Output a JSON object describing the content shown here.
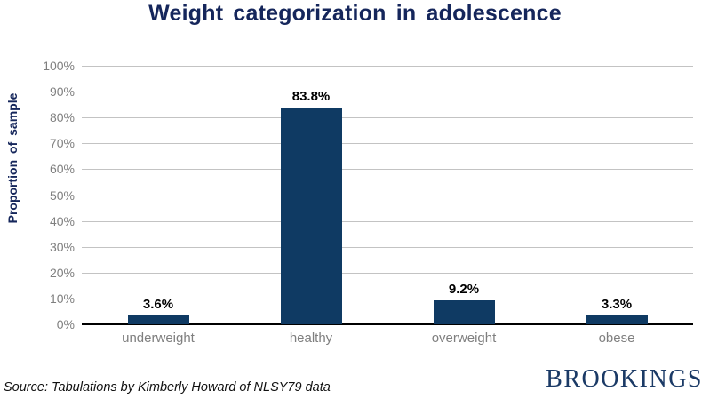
{
  "chart": {
    "title": "Weight categorization in adolescence",
    "ylabel": "Proportion  of  sample"
  },
  "chart_data": {
    "type": "bar",
    "title": "Weight categorization in adolescence",
    "categories": [
      "underweight",
      "healthy",
      "overweight",
      "obese"
    ],
    "values": [
      3.6,
      83.8,
      9.2,
      3.3
    ],
    "value_labels": [
      "3.6%",
      "83.8%",
      "9.2%",
      "3.3%"
    ],
    "xlabel": "",
    "ylabel": "Proportion of sample",
    "ylim": [
      0,
      100
    ],
    "ytick_step": 10,
    "ytick_labels": [
      "0%",
      "10%",
      "20%",
      "30%",
      "40%",
      "50%",
      "60%",
      "70%",
      "80%",
      "90%",
      "100%"
    ],
    "grid": true,
    "legend": "none",
    "bar_color": "#0f3a63"
  },
  "footer": {
    "source": "Source: Tabulations by Kimberly Howard of NLSY79 data",
    "logo": "BROOKINGS"
  },
  "colors": {
    "title_text": "#15265b",
    "bar_fill": "#0f3a63",
    "gridline": "#c3c3c3",
    "axis_line": "#000000",
    "tick_text": "#7f7f7f",
    "data_label_text": "#000000",
    "logo_text": "#1b3a66",
    "background": "#ffffff"
  }
}
